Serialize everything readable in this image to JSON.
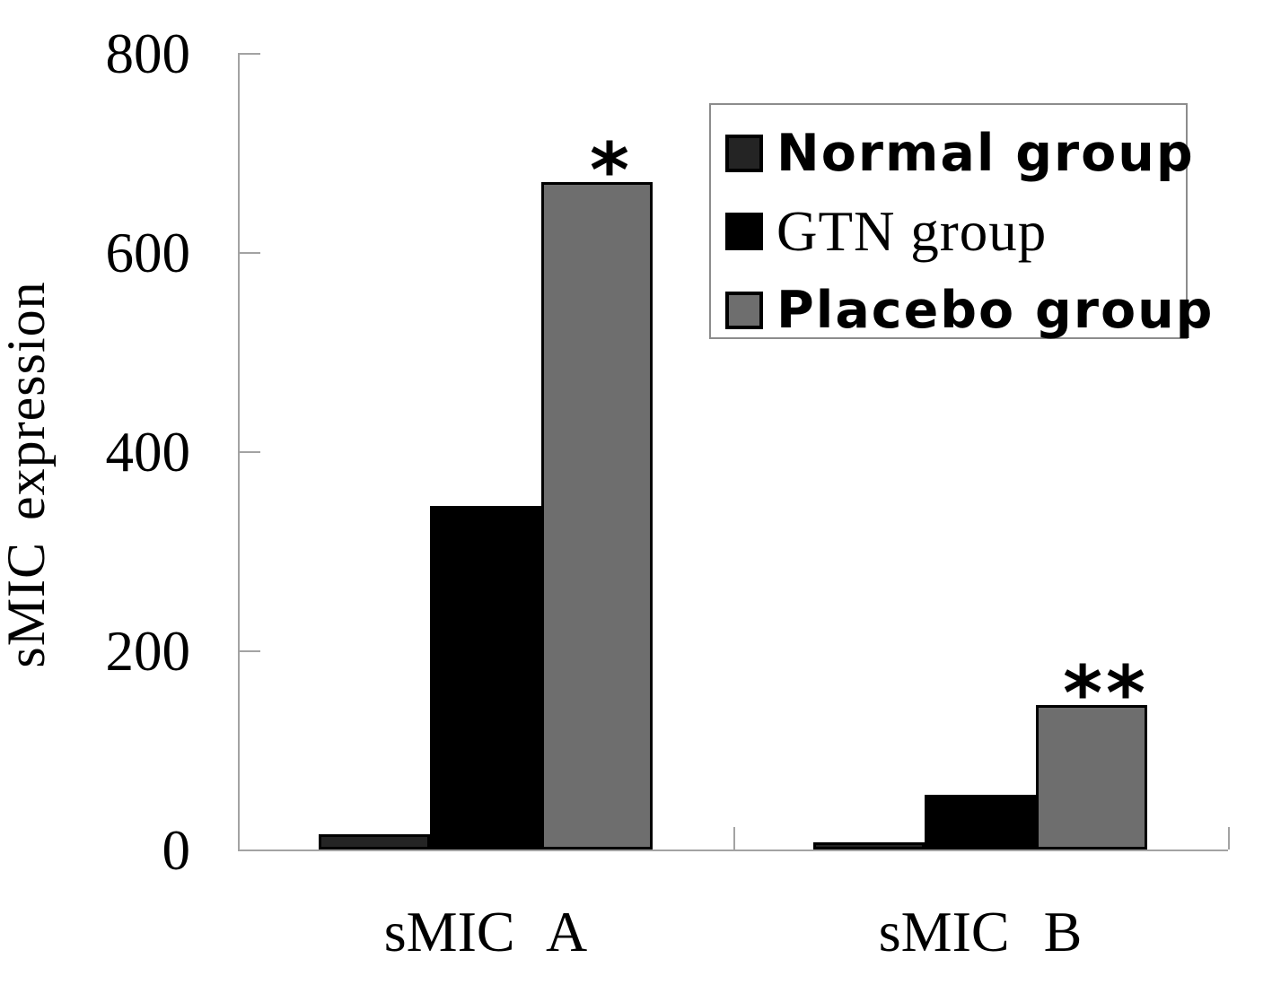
{
  "chart_data": {
    "type": "bar",
    "title": "",
    "categories": [
      "sMIC A",
      "sMIC B"
    ],
    "series": [
      {
        "name": "Normal group",
        "values": [
          15,
          7
        ],
        "fill": "#242424",
        "border": "#000000"
      },
      {
        "name": "GTN group",
        "values": [
          345,
          55
        ],
        "fill": "#000000",
        "border": "#000000"
      },
      {
        "name": "Placebo group",
        "values": [
          670,
          145
        ],
        "fill": "#6e6e6e",
        "border": "#000000"
      }
    ],
    "xlabel": "",
    "ylabel": "sMIC expression",
    "ylim": [
      0,
      800
    ],
    "yticks": [
      0,
      200,
      400,
      600,
      800
    ],
    "grid": false,
    "legend_position": "upper-right",
    "axis_color": "#a3a3a3",
    "annotations": [
      {
        "text": "*",
        "category_index": 0,
        "series_index": 2
      },
      {
        "text": "**",
        "category_index": 1,
        "series_index": 2
      }
    ]
  }
}
